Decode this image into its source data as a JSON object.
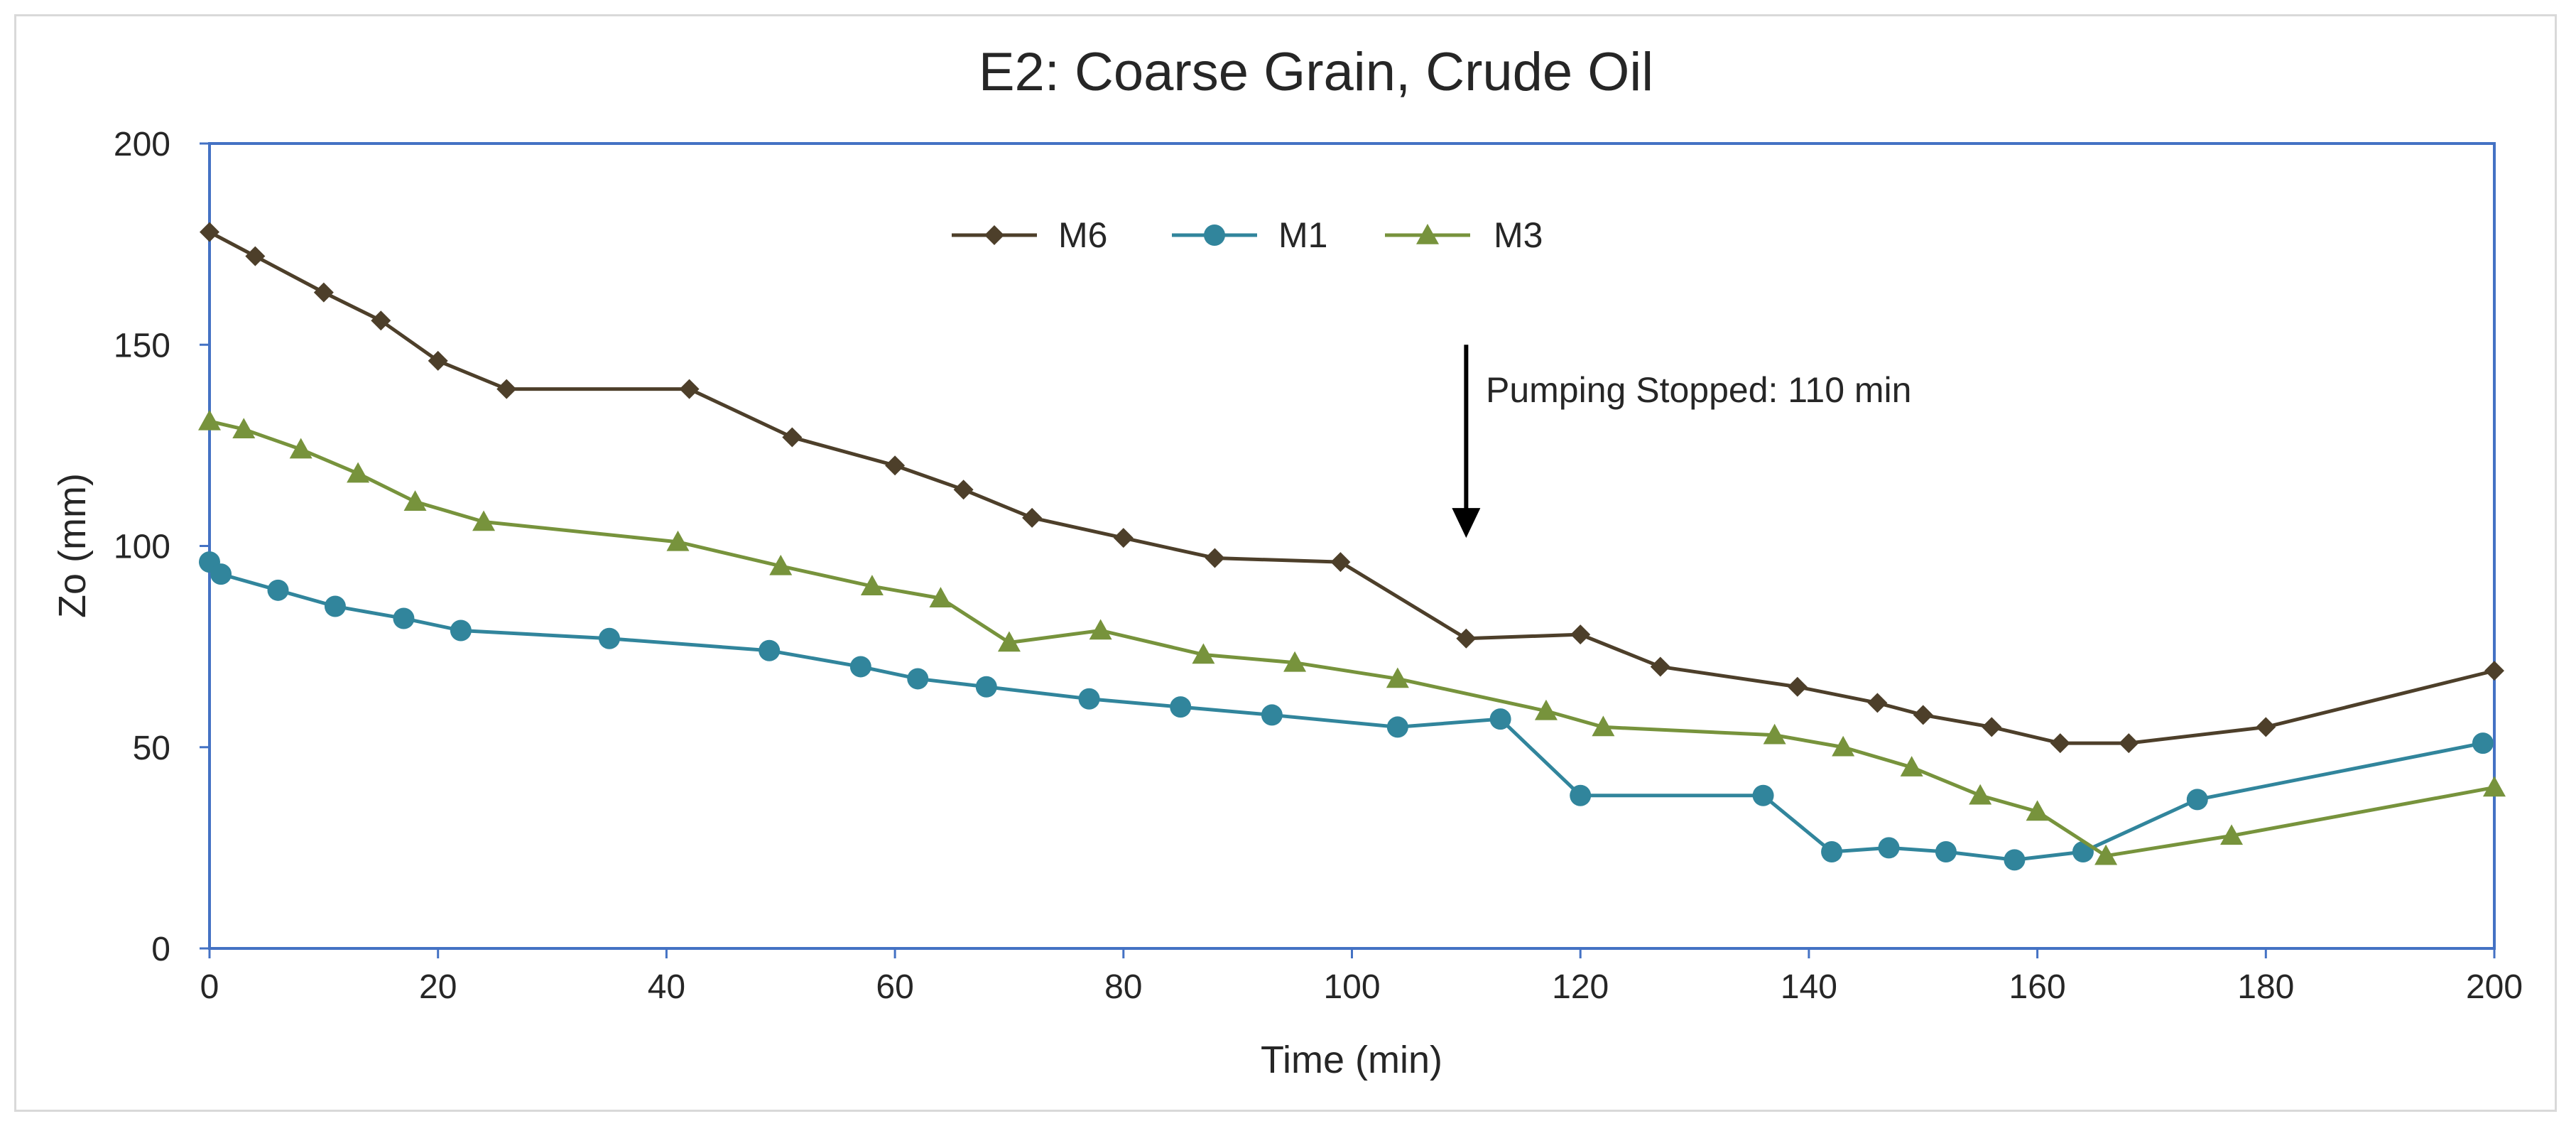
{
  "chart_data": {
    "type": "line",
    "title": "E2: Coarse Grain, Crude Oil",
    "xlabel": "Time (min)",
    "ylabel": "Zo (mm)",
    "xlim": [
      0,
      200
    ],
    "ylim": [
      0,
      200
    ],
    "x_ticks": [
      0,
      20,
      40,
      60,
      80,
      100,
      120,
      140,
      160,
      180,
      200
    ],
    "y_ticks": [
      0,
      50,
      100,
      150,
      200
    ],
    "grid": false,
    "legend_position": "top-center",
    "annotation": {
      "text": "Pumping Stopped: 110 min",
      "x": 110,
      "y_start": 150,
      "y_end": 102
    },
    "series": [
      {
        "name": "M6",
        "color": "#4d3f2a",
        "marker": "diamond",
        "x": [
          0,
          4,
          10,
          15,
          20,
          26,
          42,
          51,
          60,
          66,
          72,
          80,
          88,
          99,
          110,
          120,
          127,
          139,
          146,
          150,
          156,
          162,
          168,
          180,
          200
        ],
        "y": [
          178,
          172,
          163,
          156,
          146,
          139,
          139,
          127,
          120,
          114,
          107,
          102,
          97,
          96,
          77,
          78,
          70,
          65,
          61,
          58,
          55,
          51,
          51,
          55,
          69
        ]
      },
      {
        "name": "M1",
        "color": "#31859c",
        "marker": "circle",
        "x": [
          0,
          1,
          6,
          11,
          17,
          22,
          35,
          49,
          57,
          62,
          68,
          77,
          85,
          93,
          104,
          113,
          120,
          136,
          142,
          147,
          152,
          158,
          164,
          174,
          199
        ],
        "y": [
          96,
          93,
          89,
          85,
          82,
          79,
          77,
          74,
          70,
          67,
          65,
          62,
          60,
          58,
          55,
          57,
          38,
          38,
          24,
          25,
          24,
          22,
          24,
          37,
          51
        ]
      },
      {
        "name": "M3",
        "color": "#77933c",
        "marker": "triangle",
        "x": [
          0,
          3,
          8,
          13,
          18,
          24,
          41,
          50,
          58,
          64,
          70,
          78,
          87,
          95,
          104,
          117,
          122,
          137,
          143,
          149,
          155,
          160,
          166,
          177,
          200
        ],
        "y": [
          131,
          129,
          124,
          118,
          111,
          106,
          101,
          95,
          90,
          87,
          76,
          79,
          73,
          71,
          67,
          59,
          55,
          53,
          50,
          45,
          38,
          34,
          23,
          28,
          40
        ]
      }
    ]
  }
}
